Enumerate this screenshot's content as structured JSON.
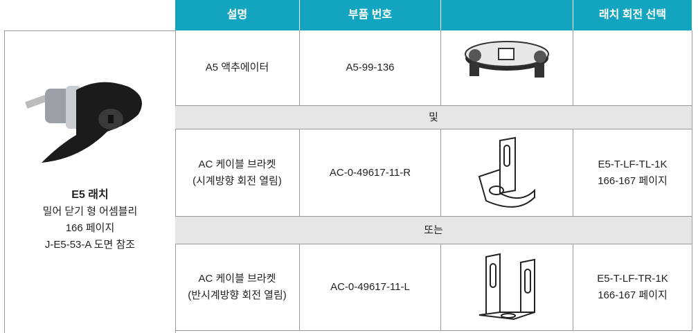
{
  "header": {
    "columns": [
      "설명",
      "부품 번호",
      "래치 회전 선택"
    ]
  },
  "latch": {
    "title": "E5 래치",
    "lines": [
      "밀어 닫기 형 어셈블리",
      "166 페이지",
      "J-E5-53-A 도면 참조"
    ]
  },
  "rows": [
    {
      "description": [
        "A5 액추에이터"
      ],
      "part_number": "A5-99-136"
    },
    {
      "separator": "및"
    },
    {
      "description": [
        "AC 케이블 브라켓",
        "(시계방향 회전 열림)"
      ],
      "part_number": "AC-0-49617-11-R",
      "latch_rotation": [
        "E5-T-LF-TL-1K",
        "166-167 페이지"
      ]
    },
    {
      "separator": "또는"
    },
    {
      "description": [
        "AC 케이블 브라켓",
        "(반시계방향 회전 열림)"
      ],
      "part_number": "AC-0-49617-11-L",
      "latch_rotation": [
        "E5-T-LF-TR-1K",
        "166-167 페이지"
      ]
    }
  ]
}
